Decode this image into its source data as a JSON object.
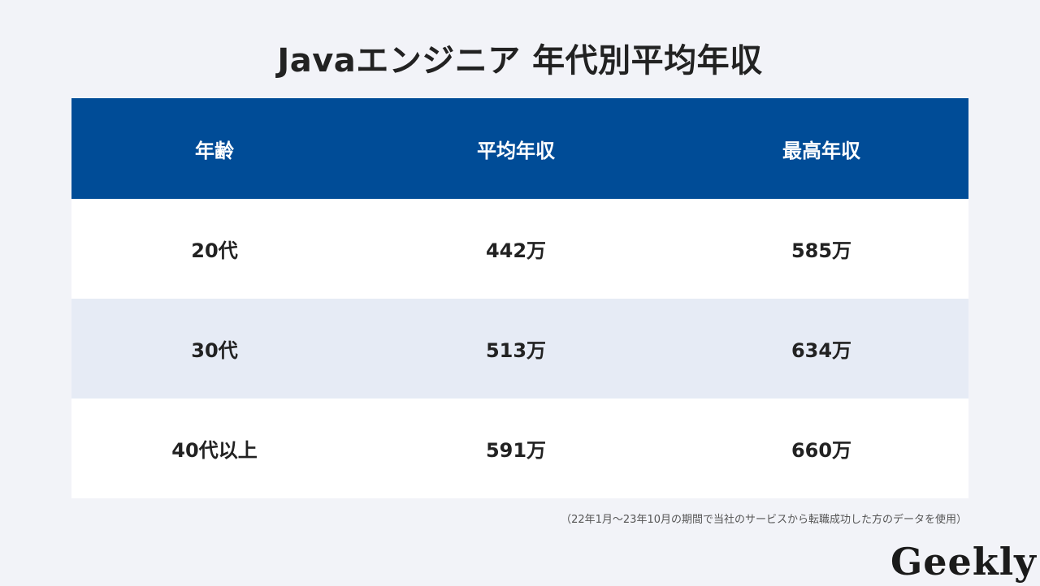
{
  "title": "Javaエンジニア 年代別平均年収",
  "table": {
    "headers": [
      "年齢",
      "平均年収",
      "最高年収"
    ],
    "rows": [
      [
        "20代",
        "442万",
        "585万"
      ],
      [
        "30代",
        "513万",
        "634万"
      ],
      [
        "40代以上",
        "591万",
        "660万"
      ]
    ]
  },
  "note": "（22年1月〜23年10月の期間で当社のサービスから転職成功した方のデータを使用）",
  "logo": "Geekly",
  "colors": {
    "header_bg": "#004c97",
    "row_tint": "#e6ebf5",
    "page_bg": "#f2f3f8"
  }
}
